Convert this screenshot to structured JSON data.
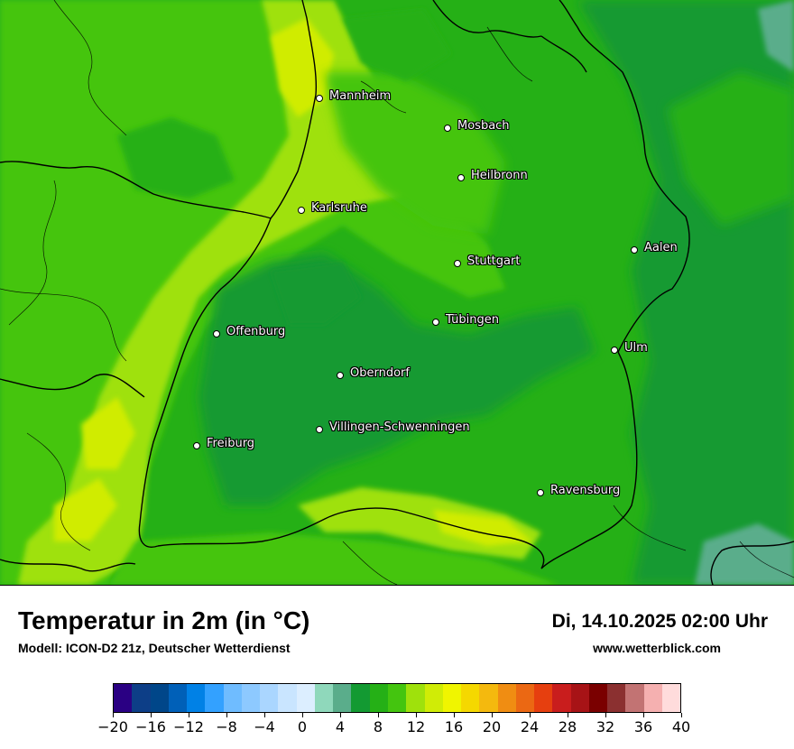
{
  "title": "Temperatur in 2m (in °C)",
  "subtitle": "Modell: ICON-D2 21z, Deutscher Wetterdienst",
  "datetime": "Di, 14.10.2025 02:00 Uhr",
  "website": "www.wetterblick.com",
  "cities": [
    {
      "name": "Mannheim"
    },
    {
      "name": "Mosbach"
    },
    {
      "name": "Heilbronn"
    },
    {
      "name": "Karlsruhe"
    },
    {
      "name": "Aalen"
    },
    {
      "name": "Stuttgart"
    },
    {
      "name": "Tübingen"
    },
    {
      "name": "Offenburg"
    },
    {
      "name": "Ulm"
    },
    {
      "name": "Oberndorf"
    },
    {
      "name": "Villingen-Schwenningen"
    },
    {
      "name": "Freiburg"
    },
    {
      "name": "Ravensburg"
    }
  ],
  "colorbar": {
    "colors": [
      "#2a0083",
      "#0d3e87",
      "#004689",
      "#0060b8",
      "#0081e6",
      "#33a1ff",
      "#6fbcff",
      "#8dc9ff",
      "#aad6ff",
      "#c9e5ff",
      "#dceeff",
      "#8fd8bb",
      "#5aad8b",
      "#139a32",
      "#25b016",
      "#44c50f",
      "#9fe10c",
      "#d0ec06",
      "#f0f500",
      "#f5d800",
      "#f4b90e",
      "#f08d12",
      "#eb6813",
      "#e63f0f",
      "#c91d1d",
      "#a71316",
      "#7a0000",
      "#8b3030",
      "#c27373",
      "#f5b0b0",
      "#ffdcdc"
    ],
    "tick_labels": [
      "−20",
      "−16",
      "−12",
      "−8",
      "−4",
      "0",
      "4",
      "8",
      "12",
      "16",
      "20",
      "24",
      "28",
      "32",
      "36",
      "40"
    ]
  }
}
